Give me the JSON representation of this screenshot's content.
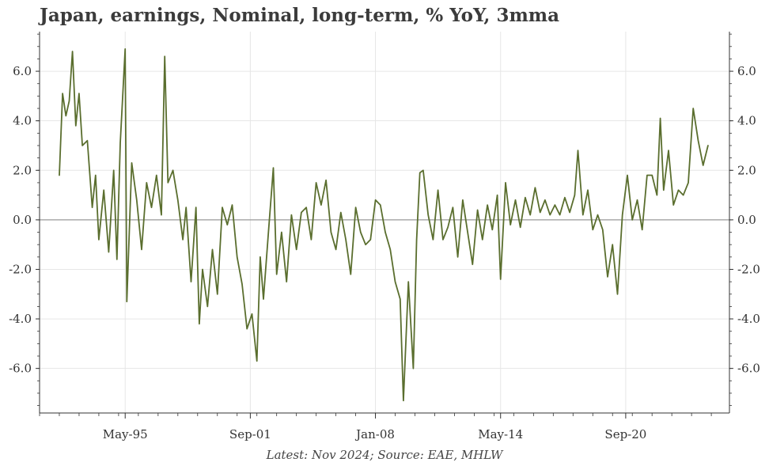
{
  "chart_data": {
    "type": "line",
    "title": "Japan, earnings, Nominal, long-term, % YoY, 3mma",
    "footer": "Latest: Nov 2024; Source: EAE, MHLW",
    "xlim": [
      "1991-01",
      "2025-12"
    ],
    "ylim": [
      -7.8,
      7.6
    ],
    "y_ticks": [
      6.0,
      4.0,
      2.0,
      0.0,
      -2.0,
      -4.0,
      -6.0
    ],
    "y_tick_labels": [
      "6.0",
      "4.0",
      "2.0",
      "0.0",
      "-2.0",
      "-4.0",
      "-6.0"
    ],
    "x_ticks": [
      "1995-05",
      "2001-09",
      "2008-01",
      "2014-05",
      "2020-09"
    ],
    "x_tick_labels": [
      "May-95",
      "Sep-01",
      "Jan-08",
      "May-14",
      "Sep-20"
    ],
    "zero_line": true,
    "grid": true,
    "y_axis_both_sides": true,
    "colors": {
      "line": "#5a6e2e",
      "grid": "#e6e6e6",
      "zero": "#999999",
      "axis": "#333333"
    },
    "series": [
      {
        "values": [
          [
            "1992-01",
            1.8
          ],
          [
            "1992-03",
            5.1
          ],
          [
            "1992-05",
            4.2
          ],
          [
            "1992-07",
            4.8
          ],
          [
            "1992-09",
            6.8
          ],
          [
            "1992-11",
            3.8
          ],
          [
            "1993-01",
            5.1
          ],
          [
            "1993-03",
            3.0
          ],
          [
            "1993-06",
            3.2
          ],
          [
            "1993-09",
            0.5
          ],
          [
            "1993-11",
            1.8
          ],
          [
            "1994-01",
            -0.8
          ],
          [
            "1994-04",
            1.2
          ],
          [
            "1994-07",
            -1.3
          ],
          [
            "1994-10",
            2.0
          ],
          [
            "1994-12",
            -1.6
          ],
          [
            "1995-02",
            3.1
          ],
          [
            "1995-05",
            6.9
          ],
          [
            "1995-06",
            -3.3
          ],
          [
            "1995-09",
            2.3
          ],
          [
            "1995-12",
            0.8
          ],
          [
            "1996-03",
            -1.2
          ],
          [
            "1996-06",
            1.5
          ],
          [
            "1996-09",
            0.5
          ],
          [
            "1996-12",
            1.8
          ],
          [
            "1997-03",
            0.2
          ],
          [
            "1997-05",
            6.6
          ],
          [
            "1997-07",
            1.5
          ],
          [
            "1997-10",
            2.0
          ],
          [
            "1998-01",
            0.8
          ],
          [
            "1998-04",
            -0.8
          ],
          [
            "1998-06",
            0.5
          ],
          [
            "1998-09",
            -2.5
          ],
          [
            "1998-12",
            0.5
          ],
          [
            "1999-02",
            -4.2
          ],
          [
            "1999-04",
            -2.0
          ],
          [
            "1999-07",
            -3.5
          ],
          [
            "1999-10",
            -1.2
          ],
          [
            "2000-01",
            -3.0
          ],
          [
            "2000-04",
            0.5
          ],
          [
            "2000-07",
            -0.2
          ],
          [
            "2000-10",
            0.6
          ],
          [
            "2001-01",
            -1.5
          ],
          [
            "2001-04",
            -2.6
          ],
          [
            "2001-07",
            -4.4
          ],
          [
            "2001-10",
            -3.8
          ],
          [
            "2002-01",
            -5.7
          ],
          [
            "2002-03",
            -1.5
          ],
          [
            "2002-05",
            -3.2
          ],
          [
            "2002-08",
            -0.5
          ],
          [
            "2002-11",
            2.1
          ],
          [
            "2003-01",
            -2.2
          ],
          [
            "2003-04",
            -0.5
          ],
          [
            "2003-07",
            -2.5
          ],
          [
            "2003-10",
            0.2
          ],
          [
            "2004-01",
            -1.2
          ],
          [
            "2004-04",
            0.3
          ],
          [
            "2004-07",
            0.5
          ],
          [
            "2004-10",
            -0.8
          ],
          [
            "2005-01",
            1.5
          ],
          [
            "2005-04",
            0.6
          ],
          [
            "2005-07",
            1.6
          ],
          [
            "2005-10",
            -0.5
          ],
          [
            "2006-01",
            -1.2
          ],
          [
            "2006-04",
            0.3
          ],
          [
            "2006-07",
            -0.8
          ],
          [
            "2006-10",
            -2.2
          ],
          [
            "2007-01",
            0.5
          ],
          [
            "2007-04",
            -0.5
          ],
          [
            "2007-07",
            -1.0
          ],
          [
            "2007-10",
            -0.8
          ],
          [
            "2008-01",
            0.8
          ],
          [
            "2008-04",
            0.6
          ],
          [
            "2008-07",
            -0.5
          ],
          [
            "2008-10",
            -1.2
          ],
          [
            "2009-01",
            -2.5
          ],
          [
            "2009-04",
            -3.2
          ],
          [
            "2009-06",
            -7.3
          ],
          [
            "2009-09",
            -2.5
          ],
          [
            "2009-12",
            -6.0
          ],
          [
            "2010-02",
            -0.8
          ],
          [
            "2010-04",
            1.9
          ],
          [
            "2010-06",
            2.0
          ],
          [
            "2010-09",
            0.2
          ],
          [
            "2010-12",
            -0.8
          ],
          [
            "2011-03",
            1.2
          ],
          [
            "2011-06",
            -0.8
          ],
          [
            "2011-09",
            -0.3
          ],
          [
            "2011-12",
            0.5
          ],
          [
            "2012-03",
            -1.5
          ],
          [
            "2012-06",
            0.8
          ],
          [
            "2012-09",
            -0.5
          ],
          [
            "2012-12",
            -1.8
          ],
          [
            "2013-03",
            0.4
          ],
          [
            "2013-06",
            -0.8
          ],
          [
            "2013-09",
            0.6
          ],
          [
            "2013-12",
            -0.4
          ],
          [
            "2014-03",
            1.0
          ],
          [
            "2014-05",
            -2.4
          ],
          [
            "2014-08",
            1.5
          ],
          [
            "2014-11",
            -0.2
          ],
          [
            "2015-02",
            0.8
          ],
          [
            "2015-05",
            -0.3
          ],
          [
            "2015-08",
            0.9
          ],
          [
            "2015-11",
            0.2
          ],
          [
            "2016-02",
            1.3
          ],
          [
            "2016-05",
            0.3
          ],
          [
            "2016-08",
            0.8
          ],
          [
            "2016-11",
            0.2
          ],
          [
            "2017-02",
            0.6
          ],
          [
            "2017-05",
            0.2
          ],
          [
            "2017-08",
            0.9
          ],
          [
            "2017-11",
            0.3
          ],
          [
            "2018-02",
            1.0
          ],
          [
            "2018-04",
            2.8
          ],
          [
            "2018-07",
            0.2
          ],
          [
            "2018-10",
            1.2
          ],
          [
            "2019-01",
            -0.4
          ],
          [
            "2019-04",
            0.2
          ],
          [
            "2019-07",
            -0.4
          ],
          [
            "2019-10",
            -2.3
          ],
          [
            "2020-01",
            -1.0
          ],
          [
            "2020-04",
            -3.0
          ],
          [
            "2020-07",
            0.2
          ],
          [
            "2020-10",
            1.8
          ],
          [
            "2021-01",
            0.0
          ],
          [
            "2021-04",
            0.8
          ],
          [
            "2021-07",
            -0.4
          ],
          [
            "2021-10",
            1.8
          ],
          [
            "2022-01",
            1.8
          ],
          [
            "2022-04",
            1.0
          ],
          [
            "2022-06",
            4.1
          ],
          [
            "2022-08",
            1.2
          ],
          [
            "2022-11",
            2.8
          ],
          [
            "2023-02",
            0.6
          ],
          [
            "2023-05",
            1.2
          ],
          [
            "2023-08",
            1.0
          ],
          [
            "2023-11",
            1.5
          ],
          [
            "2024-02",
            4.5
          ],
          [
            "2024-05",
            3.2
          ],
          [
            "2024-08",
            2.2
          ],
          [
            "2024-11",
            3.0
          ]
        ]
      }
    ]
  }
}
